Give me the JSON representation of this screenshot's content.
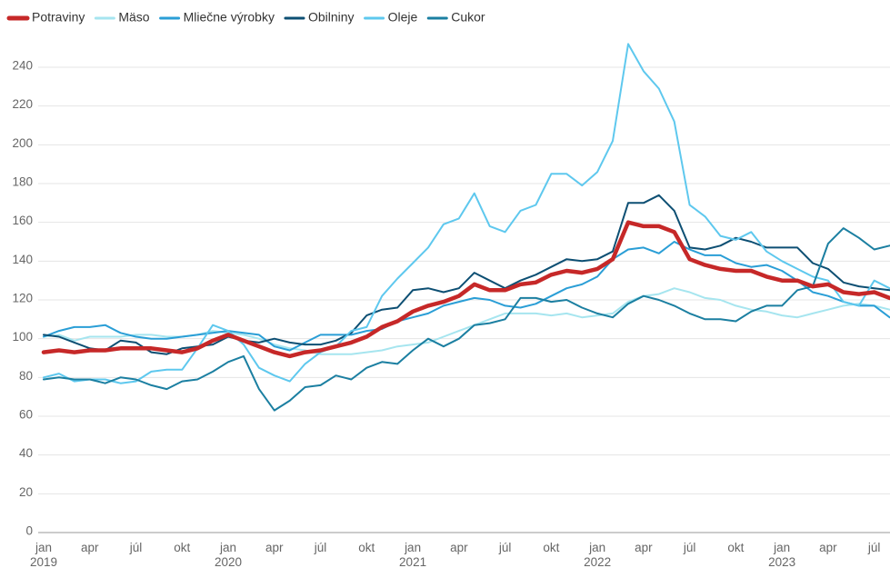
{
  "chart_data": {
    "type": "line",
    "categories": [
      "jan 2019",
      null,
      null,
      "apr",
      null,
      null,
      "júl",
      null,
      null,
      "okt",
      null,
      null,
      "jan 2020",
      null,
      null,
      "apr",
      null,
      null,
      "júl",
      null,
      null,
      "okt",
      null,
      null,
      "jan 2021",
      null,
      null,
      "apr",
      null,
      null,
      "júl",
      null,
      null,
      "okt",
      null,
      null,
      "jan 2022",
      null,
      null,
      "apr",
      null,
      null,
      "júl",
      null,
      null,
      "okt",
      null,
      null,
      "jan 2023",
      null,
      null,
      "apr",
      null,
      null,
      "júl",
      null
    ],
    "series": [
      {
        "name": "Potraviny",
        "color": "#c62828",
        "values": [
          93,
          94,
          93,
          94,
          94,
          95,
          95,
          95,
          94,
          93,
          95,
          99,
          102,
          99,
          96,
          93,
          91,
          93,
          94,
          96,
          98,
          101,
          106,
          109,
          114,
          117,
          119,
          122,
          128,
          125,
          125,
          128,
          129,
          133,
          135,
          134,
          136,
          141,
          160,
          158,
          158,
          155,
          141,
          138,
          136,
          135,
          135,
          132,
          130,
          130,
          127,
          128,
          124,
          123,
          124,
          121
        ]
      },
      {
        "name": "Mäso",
        "color": "#a6e5ef",
        "values": [
          101,
          102,
          99,
          101,
          101,
          101,
          102,
          102,
          101,
          101,
          102,
          104,
          103,
          102,
          100,
          97,
          95,
          94,
          92,
          92,
          92,
          93,
          94,
          96,
          97,
          98,
          101,
          104,
          107,
          110,
          113,
          113,
          113,
          112,
          113,
          111,
          112,
          113,
          119,
          122,
          123,
          126,
          124,
          121,
          120,
          117,
          115,
          114,
          112,
          111,
          113,
          115,
          117,
          118,
          117,
          115
        ]
      },
      {
        "name": "Mliečne výrobky",
        "color": "#2a9ed6",
        "values": [
          101,
          104,
          106,
          106,
          107,
          103,
          101,
          100,
          100,
          101,
          102,
          103,
          104,
          103,
          102,
          96,
          94,
          98,
          102,
          102,
          102,
          104,
          105,
          109,
          111,
          113,
          117,
          119,
          121,
          120,
          117,
          116,
          118,
          122,
          126,
          128,
          132,
          141,
          146,
          147,
          144,
          150,
          146,
          143,
          143,
          139,
          137,
          138,
          135,
          130,
          124,
          122,
          119,
          117,
          117,
          111
        ]
      },
      {
        "name": "Obilniny",
        "color": "#0d4f73",
        "values": [
          102,
          101,
          98,
          95,
          94,
          99,
          98,
          93,
          92,
          95,
          96,
          97,
          101,
          99,
          98,
          100,
          98,
          97,
          97,
          99,
          103,
          112,
          115,
          116,
          125,
          126,
          124,
          126,
          134,
          130,
          126,
          130,
          133,
          137,
          141,
          140,
          141,
          145,
          170,
          170,
          174,
          166,
          147,
          146,
          148,
          152,
          150,
          147,
          147,
          147,
          139,
          136,
          129,
          127,
          126,
          125
        ]
      },
      {
        "name": "Oleje",
        "color": "#5ec8ee",
        "values": [
          80,
          82,
          78,
          79,
          79,
          77,
          78,
          83,
          84,
          84,
          95,
          107,
          104,
          97,
          85,
          81,
          78,
          87,
          93,
          96,
          104,
          106,
          122,
          131,
          139,
          147,
          159,
          162,
          175,
          158,
          155,
          166,
          169,
          185,
          185,
          179,
          186,
          202,
          252,
          238,
          229,
          212,
          169,
          163,
          153,
          151,
          155,
          145,
          140,
          136,
          132,
          130,
          119,
          117,
          130,
          126
        ]
      },
      {
        "name": "Cukor",
        "color": "#1b7fa1",
        "values": [
          79,
          80,
          79,
          79,
          77,
          80,
          79,
          76,
          74,
          78,
          79,
          83,
          88,
          91,
          74,
          63,
          68,
          75,
          76,
          81,
          79,
          85,
          88,
          87,
          94,
          100,
          96,
          100,
          107,
          108,
          110,
          121,
          121,
          119,
          120,
          116,
          113,
          111,
          118,
          122,
          120,
          117,
          113,
          110,
          110,
          109,
          114,
          117,
          117,
          125,
          127,
          149,
          157,
          152,
          146,
          148
        ]
      }
    ],
    "ylim": [
      0,
      250
    ],
    "yticks": [
      0,
      20,
      40,
      60,
      80,
      100,
      120,
      140,
      160,
      180,
      200,
      220,
      240
    ],
    "grid": true
  }
}
